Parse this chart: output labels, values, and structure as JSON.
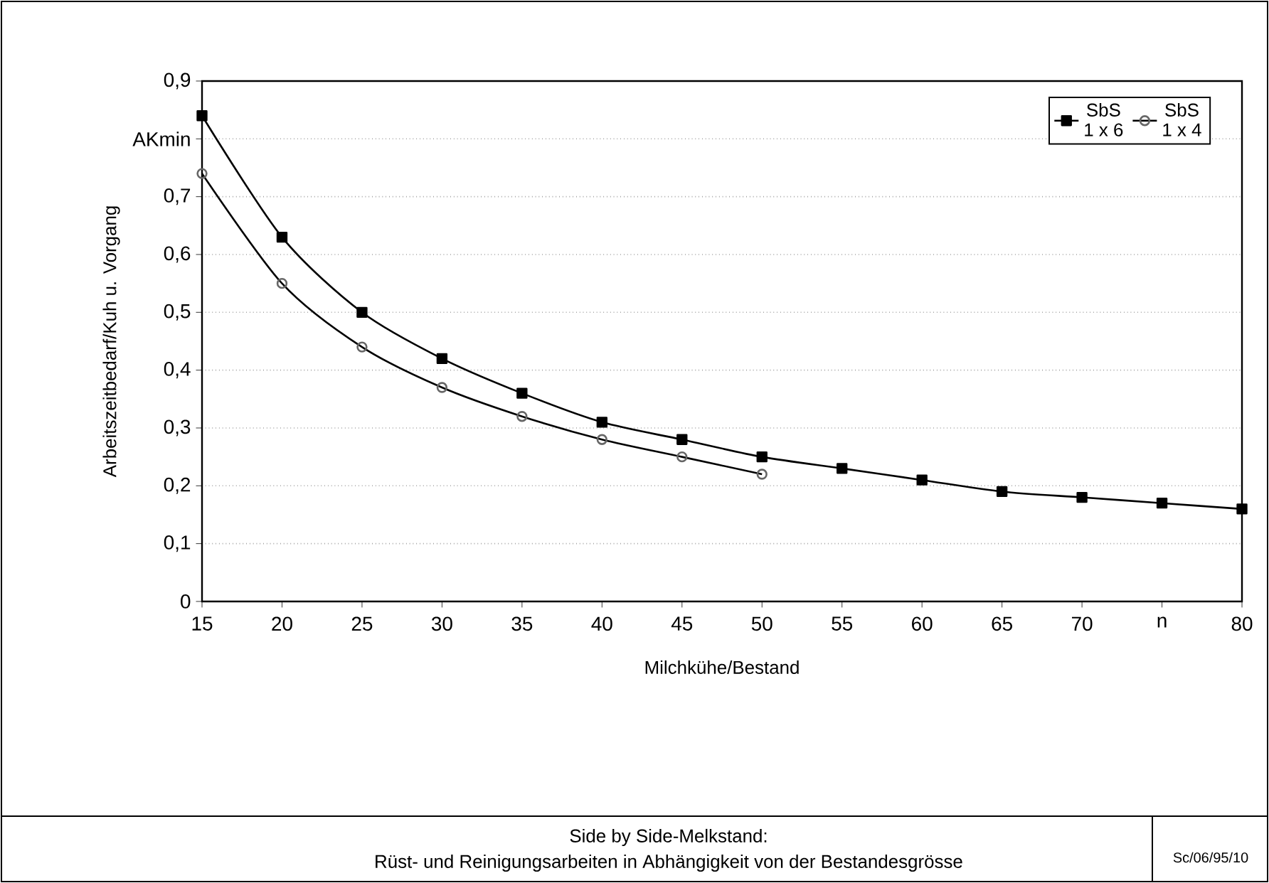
{
  "chart_data": {
    "type": "line",
    "title": "Side by Side-Melkstand:",
    "subtitle": "Rüst- und Reinigungsarbeiten in Abhängigkeit von der Bestandesgrösse",
    "xlabel": "Milchkühe/Bestand",
    "ylabel": "Arbeitszeitbedarf/Kuh u. Vorgang",
    "annotations": [
      "Sc/06/95/10"
    ],
    "series": [
      {
        "name": "SbS 1 x 6",
        "color": "#000000",
        "marker": "square",
        "x": [
          15,
          20,
          25,
          30,
          35,
          40,
          45,
          50,
          55,
          60,
          65,
          70,
          75,
          80
        ],
        "values": [
          0.84,
          0.63,
          0.5,
          0.42,
          0.36,
          0.31,
          0.28,
          0.25,
          0.23,
          0.21,
          0.19,
          0.18,
          0.17,
          0.16
        ]
      },
      {
        "name": "SbS 1 x 4",
        "color": "#000000",
        "marker": "circle",
        "x": [
          15,
          20,
          25,
          30,
          35,
          40,
          45,
          50
        ],
        "values": [
          0.74,
          0.55,
          0.44,
          0.37,
          0.32,
          0.28,
          0.25,
          0.22
        ]
      }
    ],
    "xlim": [
      15,
      80
    ],
    "xticks": [
      15,
      20,
      25,
      30,
      35,
      40,
      45,
      50,
      55,
      60,
      65,
      70,
      {
        "value": 75,
        "label": "n"
      },
      80
    ],
    "ylim": [
      0,
      0.9
    ],
    "yticks": [
      {
        "value": 0,
        "label": "0"
      },
      {
        "value": 0.1,
        "label": "0,1"
      },
      {
        "value": 0.2,
        "label": "0,2"
      },
      {
        "value": 0.3,
        "label": "0,3"
      },
      {
        "value": 0.4,
        "label": "0,4"
      },
      {
        "value": 0.5,
        "label": "0,5"
      },
      {
        "value": 0.6,
        "label": "0,6"
      },
      {
        "value": 0.7,
        "label": "0,7"
      },
      {
        "value": 0.8,
        "label": "AKmin"
      },
      {
        "value": 0.9,
        "label": "0,9"
      }
    ],
    "grid": "y",
    "line_style": "solid",
    "legend": "top right"
  }
}
